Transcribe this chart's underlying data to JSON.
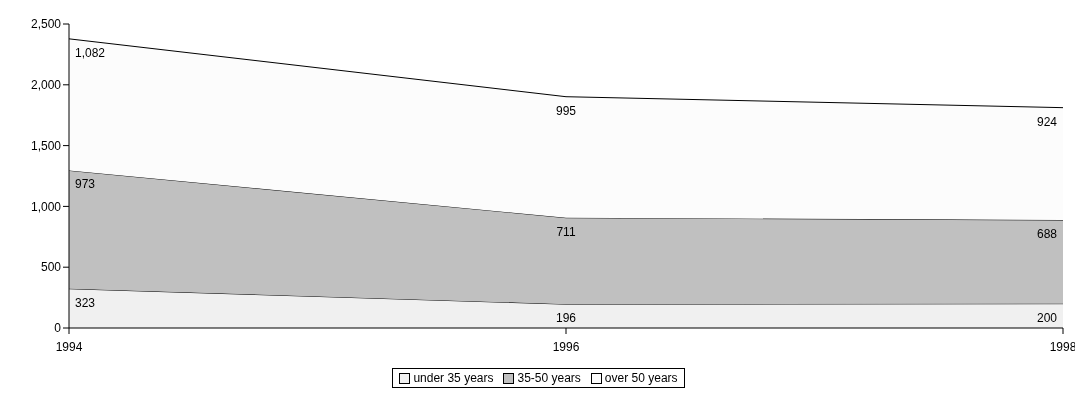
{
  "chart_data": {
    "type": "area",
    "stacked": true,
    "x": [
      1994,
      1996,
      1998
    ],
    "series": [
      {
        "name": "under 35 years",
        "color": "#f0f0f0",
        "values": [
          323,
          196,
          200
        ],
        "value_labels": [
          "323",
          "196",
          "200"
        ]
      },
      {
        "name": "35-50 years",
        "color": "#c0c0c0",
        "values": [
          973,
          711,
          688
        ],
        "value_labels": [
          "973",
          "711",
          "688"
        ]
      },
      {
        "name": "over 50 years",
        "color": "#fcfcfc",
        "values": [
          1082,
          995,
          924
        ],
        "value_labels": [
          "1,082",
          "995",
          "924"
        ]
      }
    ],
    "xlim": [
      1994,
      1998
    ],
    "xticks": [
      1994,
      1996,
      1998
    ],
    "ylim": [
      0,
      2500
    ],
    "yticks": [
      0,
      500,
      {
        "value": 1000,
        "label": "1,000"
      },
      {
        "value": 1500,
        "label": "1,500"
      },
      {
        "value": 2000,
        "label": "2,000"
      },
      {
        "value": 2500,
        "label": "2,500"
      }
    ],
    "legend": "bottom",
    "grid": false
  }
}
